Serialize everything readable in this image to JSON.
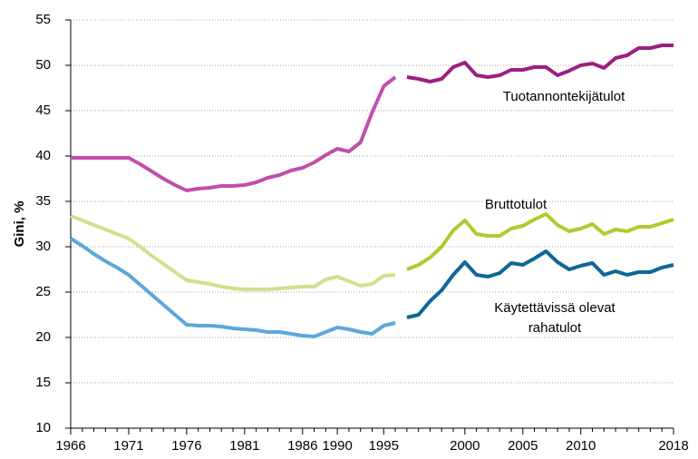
{
  "chart_data": {
    "type": "line",
    "y_label": "Gini, %",
    "categories": [
      "1966",
      null,
      null,
      null,
      null,
      "1971",
      null,
      null,
      null,
      null,
      "1976",
      null,
      null,
      null,
      null,
      "1981",
      null,
      null,
      null,
      null,
      "1986",
      null,
      null,
      "1990",
      null,
      null,
      null,
      "1995",
      null,
      null,
      null,
      null,
      null,
      null,
      "2000",
      null,
      null,
      null,
      null,
      "2005",
      null,
      null,
      null,
      null,
      "2010",
      null,
      null,
      null,
      null,
      null,
      null,
      null,
      "2018"
    ],
    "ylim": [
      10,
      55
    ],
    "yticks": [
      10,
      15,
      20,
      25,
      30,
      35,
      40,
      45,
      50,
      55
    ],
    "grid": true,
    "series": [
      {
        "color": "#c04fab",
        "values": [
          39.8,
          39.8,
          39.8,
          39.8,
          39.8,
          39.8,
          39.1,
          38.3,
          37.5,
          36.8,
          36.2,
          36.4,
          36.5,
          36.7,
          36.7,
          36.8,
          37.1,
          37.6,
          37.9,
          38.4,
          38.7,
          39.3,
          40.1,
          40.8,
          40.5,
          41.5,
          44.8,
          47.7,
          48.7,
          null,
          null,
          null,
          null,
          null,
          null,
          null,
          null,
          null,
          null,
          null,
          null,
          null,
          null,
          null,
          null,
          null,
          null,
          null,
          null,
          null,
          null,
          null,
          null
        ]
      },
      {
        "color": "#9c1f80",
        "values": [
          null,
          null,
          null,
          null,
          null,
          null,
          null,
          null,
          null,
          null,
          null,
          null,
          null,
          null,
          null,
          null,
          null,
          null,
          null,
          null,
          null,
          null,
          null,
          null,
          null,
          null,
          null,
          null,
          null,
          48.7,
          48.5,
          48.2,
          48.5,
          49.8,
          50.3,
          48.9,
          48.7,
          48.9,
          49.5,
          49.5,
          49.8,
          49.8,
          48.9,
          49.4,
          50.0,
          50.2,
          49.7,
          50.8,
          51.1,
          51.9,
          51.9,
          52.2,
          52.2
        ]
      },
      {
        "color": "#d2e08c",
        "values": [
          33.4,
          32.9,
          32.4,
          31.9,
          31.4,
          30.9,
          30.0,
          29.0,
          28.1,
          27.2,
          26.3,
          26.1,
          25.9,
          25.6,
          25.4,
          25.3,
          25.3,
          25.3,
          25.4,
          25.5,
          25.6,
          25.6,
          26.4,
          26.7,
          26.2,
          25.7,
          25.9,
          26.8,
          26.9,
          null,
          null,
          null,
          null,
          null,
          null,
          null,
          null,
          null,
          null,
          null,
          null,
          null,
          null,
          null,
          null,
          null,
          null,
          null,
          null,
          null,
          null,
          null,
          null
        ]
      },
      {
        "color": "#b3c92f",
        "values": [
          null,
          null,
          null,
          null,
          null,
          null,
          null,
          null,
          null,
          null,
          null,
          null,
          null,
          null,
          null,
          null,
          null,
          null,
          null,
          null,
          null,
          null,
          null,
          null,
          null,
          null,
          null,
          null,
          null,
          27.5,
          28.0,
          28.8,
          30.0,
          31.8,
          32.9,
          31.4,
          31.2,
          31.2,
          32.0,
          32.3,
          33.0,
          33.6,
          32.4,
          31.7,
          32.0,
          32.5,
          31.4,
          31.9,
          31.7,
          32.2,
          32.2,
          32.6,
          33.0
        ]
      },
      {
        "color": "#5ca8d9",
        "values": [
          30.9,
          30.1,
          29.2,
          28.4,
          27.7,
          26.9,
          25.8,
          24.7,
          23.6,
          22.5,
          21.4,
          21.3,
          21.3,
          21.2,
          21.0,
          20.9,
          20.8,
          20.6,
          20.6,
          20.4,
          20.2,
          20.1,
          20.6,
          21.1,
          20.9,
          20.6,
          20.4,
          21.3,
          21.6,
          null,
          null,
          null,
          null,
          null,
          null,
          null,
          null,
          null,
          null,
          null,
          null,
          null,
          null,
          null,
          null,
          null,
          null,
          null,
          null,
          null,
          null,
          null,
          null
        ]
      },
      {
        "color": "#0f6796",
        "values": [
          null,
          null,
          null,
          null,
          null,
          null,
          null,
          null,
          null,
          null,
          null,
          null,
          null,
          null,
          null,
          null,
          null,
          null,
          null,
          null,
          null,
          null,
          null,
          null,
          null,
          null,
          null,
          null,
          null,
          22.2,
          22.5,
          24.0,
          25.2,
          26.9,
          28.3,
          26.9,
          26.7,
          27.1,
          28.2,
          28.0,
          28.7,
          29.5,
          28.3,
          27.5,
          27.9,
          28.2,
          26.9,
          27.3,
          26.9,
          27.2,
          27.2,
          27.7,
          28.0
        ]
      }
    ],
    "annotations": [
      "Tuotannontekijätulot",
      "Bruttotulot",
      "Käytettävissä olevat",
      "rahatulot"
    ]
  }
}
